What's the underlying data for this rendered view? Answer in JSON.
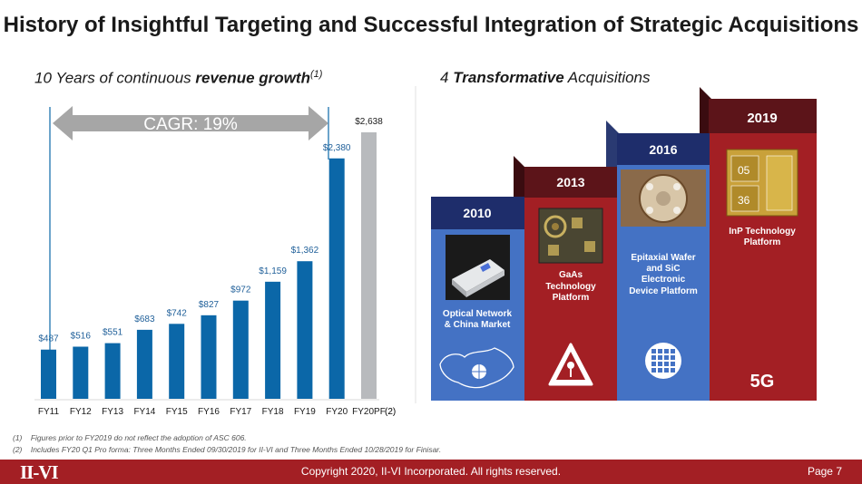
{
  "slide": {
    "title": "History of Insightful Targeting and Successful Integration of Strategic Acquisitions",
    "left_subtitle": {
      "pre": "10 Years of continuous ",
      "bold": "revenue growth",
      "sup": "(1)"
    },
    "right_subtitle": {
      "pre": "4 ",
      "bold": "Transformative",
      "post": " Acquisitions"
    },
    "cagr_label": "CAGR: 19%",
    "note_marker": "(2)",
    "footnotes": [
      {
        "num": "(1)",
        "text": "Figures prior to FY2019 do not reflect the adoption of ASC 606."
      },
      {
        "num": "(2)",
        "text": "Includes FY20 Q1 Pro forma: Three Months Ended 09/30/2019 for II-VI and Three Months Ended 10/28/2019 for Finisar."
      }
    ],
    "footer": {
      "logo": "II-VI",
      "copyright": "Copyright 2020, II-VI Incorporated. All rights reserved.",
      "page": "Page 7"
    }
  },
  "chart_data": {
    "type": "bar",
    "categories": [
      "FY11",
      "FY12",
      "FY13",
      "FY14",
      "FY15",
      "FY16",
      "FY17",
      "FY18",
      "FY19",
      "FY20",
      "FY20PF"
    ],
    "values": [
      487,
      516,
      551,
      683,
      742,
      827,
      972,
      1159,
      1362,
      2380,
      2638
    ],
    "labels": [
      "$487",
      "$516",
      "$551",
      "$683",
      "$742",
      "$827",
      "$972",
      "$1,159",
      "$1,362",
      "$2,380",
      "$2,638"
    ],
    "colors": {
      "bar": "#0b67a8",
      "last_bar": "#b8babd",
      "label": "#1f5f99",
      "arrow": "#a6a6a6"
    }
  },
  "acquisitions": [
    {
      "year": "2010",
      "caption": "Optical Network & China Market",
      "color": "#4472c4",
      "icon": "china-map-icon"
    },
    {
      "year": "2013",
      "caption": "GaAs Technology Platform",
      "color": "#a31f24",
      "icon": "laser-warning-icon"
    },
    {
      "year": "2016",
      "caption": "Epitaxial Wafer and SiC Electronic Device Platform",
      "color": "#4472c4",
      "icon": "wafer-icon"
    },
    {
      "year": "2019",
      "caption": "InP Technology Platform",
      "color": "#a31f24",
      "badge": "5G"
    }
  ]
}
